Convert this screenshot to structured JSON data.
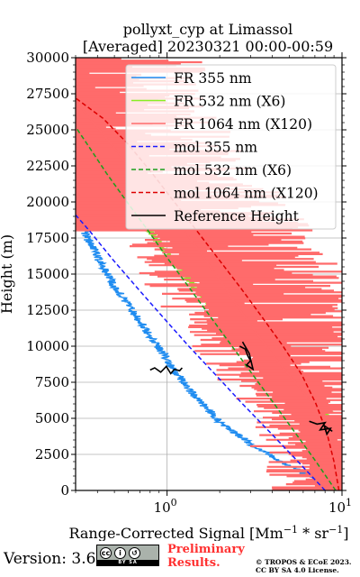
{
  "chart_data": {
    "type": "line",
    "title_line1": "pollyxt_cyp at Limassol",
    "title_line2": "[Averaged] 20230321 00:00-00:59",
    "xlabel": "Range-Corrected Signal [Mm",
    "xlabel_sup1": "−1",
    "xlabel_mid": " * sr",
    "xlabel_sup2": "−1",
    "xlabel_end": "]",
    "ylabel": "Height (m)",
    "xscale": "log",
    "xlim": [
      0.3,
      10
    ],
    "ylim": [
      0,
      30000
    ],
    "yticks": [
      0,
      2500,
      5000,
      7500,
      10000,
      12500,
      15000,
      17500,
      20000,
      22500,
      25000,
      27500,
      30000
    ],
    "ytick_labels": [
      "0",
      "2500",
      "5000",
      "7500",
      "10000",
      "12500",
      "15000",
      "17500",
      "20000",
      "22500",
      "25000",
      "27500",
      "30000"
    ],
    "xtick_major": [
      1,
      10
    ],
    "xtick_labels": [
      {
        "base": "10",
        "exp": "0"
      },
      {
        "base": "10",
        "exp": "1"
      }
    ],
    "grid": true,
    "legend_position": "top-right",
    "series": [
      {
        "name": "FR 355 nm",
        "color": "#1f8cf0",
        "style": "noisy",
        "points": [
          [
            9.2,
            150
          ],
          [
            8.0,
            500
          ],
          [
            6.5,
            1000
          ],
          [
            5.2,
            1600
          ],
          [
            4.1,
            2300
          ],
          [
            3.2,
            3000
          ],
          [
            2.6,
            3800
          ],
          [
            2.1,
            4500
          ],
          [
            1.75,
            5500
          ],
          [
            1.45,
            6500
          ],
          [
            1.25,
            7500
          ],
          [
            1.08,
            8500
          ],
          [
            0.95,
            9500
          ],
          [
            0.82,
            10500
          ],
          [
            0.72,
            11500
          ],
          [
            0.63,
            12500
          ],
          [
            0.55,
            13500
          ],
          [
            0.48,
            14500
          ],
          [
            0.43,
            15500
          ],
          [
            0.39,
            16500
          ],
          [
            0.35,
            17500
          ],
          [
            0.32,
            18500
          ],
          [
            0.3,
            19300
          ]
        ]
      },
      {
        "name": "FR 532 nm (X6)",
        "color": "#88ee22",
        "style": "noisy",
        "points": [
          [
            9.5,
            150
          ],
          [
            9.0,
            800
          ],
          [
            7.8,
            2000
          ],
          [
            6.9,
            3200
          ],
          [
            7.0,
            4200
          ],
          [
            8.4,
            5400
          ],
          [
            7.6,
            6300
          ],
          [
            5.5,
            7000
          ],
          [
            4.2,
            8200
          ],
          [
            3.4,
            9300
          ],
          [
            2.8,
            10300
          ],
          [
            2.3,
            11300
          ],
          [
            1.95,
            12300
          ],
          [
            1.65,
            13300
          ],
          [
            1.4,
            14300
          ],
          [
            1.2,
            15300
          ],
          [
            1.02,
            16300
          ],
          [
            0.88,
            17300
          ],
          [
            0.76,
            18300
          ],
          [
            0.65,
            19300
          ],
          [
            0.56,
            20300
          ],
          [
            0.48,
            21300
          ],
          [
            0.42,
            22300
          ],
          [
            0.37,
            23300
          ],
          [
            0.33,
            24300
          ],
          [
            0.3,
            25200
          ]
        ]
      },
      {
        "name": "FR 1064 nm (X120)",
        "color": "#ff6b6b",
        "style": "band",
        "points": [
          [
            9.5,
            100
          ],
          [
            8.9,
            2000
          ],
          [
            8.2,
            4000
          ],
          [
            6.8,
            6000
          ],
          [
            5.4,
            7500
          ],
          [
            4.4,
            8800
          ],
          [
            3.7,
            10000
          ],
          [
            3.2,
            11000
          ],
          [
            2.8,
            12000
          ],
          [
            2.45,
            13000
          ],
          [
            2.15,
            14000
          ],
          [
            1.9,
            15000
          ],
          [
            1.65,
            16000
          ],
          [
            1.45,
            17000
          ],
          [
            1.25,
            18000
          ],
          [
            1.08,
            19000
          ],
          [
            0.92,
            20000
          ],
          [
            0.78,
            21000
          ],
          [
            0.66,
            22000
          ],
          [
            0.56,
            23000
          ],
          [
            0.48,
            24000
          ],
          [
            0.41,
            25000
          ],
          [
            0.35,
            26000
          ],
          [
            0.3,
            27000
          ]
        ]
      },
      {
        "name": "mol 355 nm",
        "color": "#1a1aff",
        "style": "dashed",
        "points": [
          [
            8.0,
            0
          ],
          [
            5.6,
            2000
          ],
          [
            3.9,
            4000
          ],
          [
            2.7,
            6000
          ],
          [
            1.9,
            8000
          ],
          [
            1.33,
            10000
          ],
          [
            0.95,
            12000
          ],
          [
            0.68,
            14000
          ],
          [
            0.49,
            16000
          ],
          [
            0.36,
            18000
          ],
          [
            0.3,
            19100
          ]
        ]
      },
      {
        "name": "mol 532 nm (X6)",
        "color": "#1c9e1c",
        "style": "dashed",
        "points": [
          [
            9.2,
            0
          ],
          [
            7.1,
            2000
          ],
          [
            5.4,
            4000
          ],
          [
            4.1,
            6000
          ],
          [
            3.1,
            8000
          ],
          [
            2.35,
            10000
          ],
          [
            1.78,
            12000
          ],
          [
            1.35,
            14000
          ],
          [
            1.02,
            16000
          ],
          [
            0.78,
            18000
          ],
          [
            0.59,
            20000
          ],
          [
            0.45,
            22000
          ],
          [
            0.35,
            24000
          ],
          [
            0.3,
            25200
          ]
        ]
      },
      {
        "name": "mol 1064 nm (X120)",
        "color": "#dd0000",
        "style": "dashed",
        "points": [
          [
            9.6,
            0
          ],
          [
            9.0,
            2000
          ],
          [
            8.2,
            4000
          ],
          [
            7.1,
            6000
          ],
          [
            5.9,
            8000
          ],
          [
            4.6,
            10000
          ],
          [
            3.5,
            12000
          ],
          [
            2.65,
            14000
          ],
          [
            1.98,
            16000
          ],
          [
            1.48,
            18000
          ],
          [
            1.1,
            20000
          ],
          [
            0.82,
            22000
          ],
          [
            0.6,
            24000
          ],
          [
            0.43,
            25800
          ],
          [
            0.3,
            27200
          ]
        ]
      },
      {
        "name": "Reference Height",
        "color": "#000000",
        "style": "ref",
        "segments": [
          {
            "points": [
              [
                0.8,
                8350
              ],
              [
                0.85,
                8500
              ],
              [
                0.92,
                8200
              ],
              [
                0.99,
                8600
              ],
              [
                1.05,
                8100
              ],
              [
                1.1,
                8400
              ],
              [
                1.18,
                8300
              ],
              [
                1.22,
                8500
              ]
            ]
          },
          {
            "points": [
              [
                2.6,
                10000
              ],
              [
                2.8,
                9800
              ],
              [
                2.9,
                9300
              ],
              [
                3.0,
                9000
              ],
              [
                2.85,
                8700
              ],
              [
                3.1,
                8400
              ],
              [
                2.95,
                9500
              ],
              [
                2.7,
                10300
              ]
            ]
          },
          {
            "points": [
              [
                6.5,
                4800
              ],
              [
                7.2,
                4600
              ],
              [
                8.0,
                4700
              ],
              [
                7.5,
                4200
              ],
              [
                8.6,
                4300
              ],
              [
                8.2,
                3900
              ],
              [
                7.9,
                4500
              ],
              [
                8.8,
                4100
              ]
            ]
          }
        ]
      }
    ]
  },
  "footer": {
    "version": "Version: 3.6",
    "cc_label": "BY   SA",
    "prelim_line1": "Preliminary",
    "prelim_line2": "Results.",
    "copyright_line1": "© TROPOS & ECoE 2023.",
    "copyright_line2": "CC BY SA 4.0 License."
  }
}
